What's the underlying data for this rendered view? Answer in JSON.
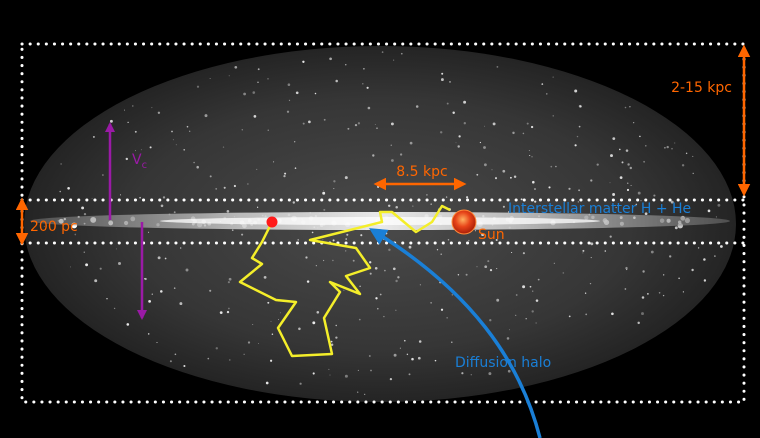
{
  "labels": {
    "halo_height": "2-15 kpc",
    "sun_distance": "8.5 kpc",
    "disk_thickness": "200 pc",
    "ism": "Interstellar matter H + He",
    "sun": "Sun",
    "diffusion_halo": "Diffusion halo",
    "wind_velocity_symbol": "V",
    "wind_velocity_subscript": "c"
  },
  "colors": {
    "background": "#000000",
    "sky": "#3a3a3a",
    "frame": "#ffffff",
    "orange": "#ff6600",
    "blue": "#1a7fd6",
    "yellow": "#f4ee2a",
    "purple": "#9a1aa6",
    "source": "#ff1a1a",
    "sun": "#e8451a"
  }
}
